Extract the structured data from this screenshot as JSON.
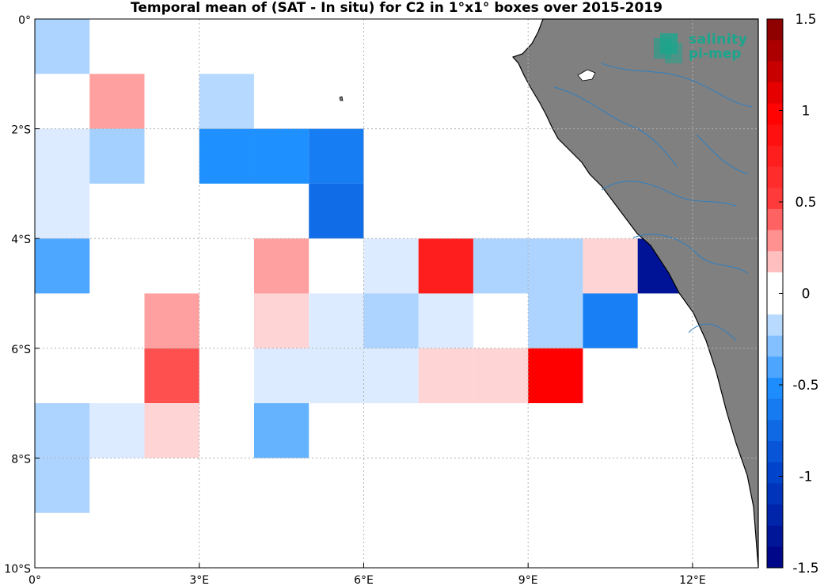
{
  "title": "Temporal mean of (SAT - In situ) for C2 in 1°x1° boxes over 2015-2019",
  "logo": {
    "line1": "salinity",
    "line2": "pi-mep"
  },
  "colors": {
    "land": "#808080",
    "river": "#2f7fc0",
    "grid": "#b0b0b0"
  },
  "chart_data": {
    "type": "heatmap",
    "title": "Temporal mean of (SAT - In situ) for C2 in 1°x1° boxes over 2015-2019",
    "xlabel": "",
    "ylabel": "",
    "xlim": [
      0,
      13.2
    ],
    "ylim": [
      -10,
      0
    ],
    "x_ticks": [
      {
        "value": 0,
        "label": "0°"
      },
      {
        "value": 3,
        "label": "3°E"
      },
      {
        "value": 6,
        "label": "6°E"
      },
      {
        "value": 9,
        "label": "9°E"
      },
      {
        "value": 12,
        "label": "12°E"
      }
    ],
    "y_ticks": [
      {
        "value": 0,
        "label": "0°"
      },
      {
        "value": -2,
        "label": "2°S"
      },
      {
        "value": -4,
        "label": "4°S"
      },
      {
        "value": -6,
        "label": "6°S"
      },
      {
        "value": -8,
        "label": "8°S"
      },
      {
        "value": -10,
        "label": "10°S"
      }
    ],
    "grid": true,
    "colorbar": {
      "min": -1.5,
      "max": 1.5,
      "levels": 26,
      "ticks": [
        {
          "value": 1.5,
          "label": "1.5"
        },
        {
          "value": 1,
          "label": "1"
        },
        {
          "value": 0.5,
          "label": "0.5"
        },
        {
          "value": 0,
          "label": "0"
        },
        {
          "value": -0.5,
          "label": "-0.5"
        },
        {
          "value": -1,
          "label": "-1"
        },
        {
          "value": -1.5,
          "label": "-1.5"
        }
      ]
    },
    "cells": [
      {
        "lon": 0,
        "lat": 0,
        "value": -0.2
      },
      {
        "lon": 1,
        "lat": -1,
        "value": 0.25
      },
      {
        "lon": 3,
        "lat": -1,
        "value": -0.18
      },
      {
        "lon": 0,
        "lat": -2,
        "value": -0.1
      },
      {
        "lon": 1,
        "lat": -2,
        "value": -0.22
      },
      {
        "lon": 3,
        "lat": -2,
        "value": -0.5
      },
      {
        "lon": 4,
        "lat": -2,
        "value": -0.5
      },
      {
        "lon": 5,
        "lat": -2,
        "value": -0.62
      },
      {
        "lon": 0,
        "lat": -3,
        "value": -0.1
      },
      {
        "lon": 5,
        "lat": -3,
        "value": -0.72
      },
      {
        "lon": 0,
        "lat": -4,
        "value": -0.4
      },
      {
        "lon": 4,
        "lat": -4,
        "value": 0.25
      },
      {
        "lon": 6,
        "lat": -4,
        "value": -0.1
      },
      {
        "lon": 7,
        "lat": -4,
        "value": 0.75
      },
      {
        "lon": 8,
        "lat": -4,
        "value": -0.2
      },
      {
        "lon": 9,
        "lat": -4,
        "value": -0.2
      },
      {
        "lon": 10,
        "lat": -4,
        "value": 0.12
      },
      {
        "lon": 11,
        "lat": -4,
        "value": -1.35
      },
      {
        "lon": 2,
        "lat": -5,
        "value": 0.25
      },
      {
        "lon": 4,
        "lat": -5,
        "value": 0.12
      },
      {
        "lon": 5,
        "lat": -5,
        "value": -0.1
      },
      {
        "lon": 6,
        "lat": -5,
        "value": -0.2
      },
      {
        "lon": 7,
        "lat": -5,
        "value": -0.1
      },
      {
        "lon": 9,
        "lat": -5,
        "value": -0.2
      },
      {
        "lon": 10,
        "lat": -5,
        "value": -0.6
      },
      {
        "lon": 2,
        "lat": -6,
        "value": 0.45
      },
      {
        "lon": 4,
        "lat": -6,
        "value": -0.1
      },
      {
        "lon": 5,
        "lat": -6,
        "value": -0.1
      },
      {
        "lon": 6,
        "lat": -6,
        "value": -0.1
      },
      {
        "lon": 7,
        "lat": -6,
        "value": 0.12
      },
      {
        "lon": 8,
        "lat": -6,
        "value": 0.12
      },
      {
        "lon": 9,
        "lat": -6,
        "value": 1.0
      },
      {
        "lon": 0,
        "lat": -7,
        "value": -0.2
      },
      {
        "lon": 1,
        "lat": -7,
        "value": -0.1
      },
      {
        "lon": 2,
        "lat": -7,
        "value": 0.12
      },
      {
        "lon": 4,
        "lat": -7,
        "value": -0.35
      },
      {
        "lon": 0,
        "lat": -8,
        "value": -0.2
      }
    ]
  }
}
